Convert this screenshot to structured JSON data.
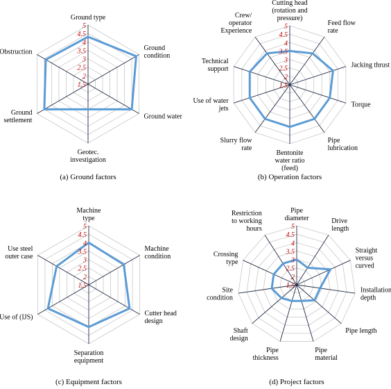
{
  "chart_data": [
    {
      "type": "radar",
      "title": "(a)  Ground factors",
      "categories": [
        "Ground type",
        "Ground\ncondition",
        "Ground water",
        "Geotec.\ninvestigation",
        "Ground\nsettlement",
        "Obstruction"
      ],
      "values": [
        4.3,
        4.8,
        4.5,
        3.0,
        4.5,
        4.4
      ],
      "color": "#5b9bd5",
      "rlim": [
        1.5,
        5
      ],
      "rticks": [
        1.5,
        2,
        2.5,
        3,
        3.5,
        4,
        4.5,
        5
      ],
      "grid": true
    },
    {
      "type": "radar",
      "title": "(b)  Operation factors",
      "categories": [
        "Cutting head\n(rotation and\npressure)",
        "Feed flow\nrate",
        "Jacking thrust",
        "Torque",
        "Pipe\nlubrication",
        "Bentonite\nwater ratio\n(feed)",
        "Slurry flow\nrate",
        "Use of water\njets",
        "Technical\nsupport",
        "Crew/\noperator\nExperience"
      ],
      "values": [
        3.5,
        3.8,
        4.2,
        4.0,
        4.0,
        4.0,
        4.0,
        4.0,
        4.0,
        3.8
      ],
      "color": "#5b9bd5",
      "rlim": [
        1.5,
        5
      ],
      "rticks": [
        1.5,
        2,
        2.5,
        3,
        3.5,
        4,
        4.5,
        5
      ],
      "grid": true
    },
    {
      "type": "radar",
      "title": "(c)  Equipment factors",
      "categories": [
        "Machine\ntype",
        "Machine\ncondition",
        "Cutter head\ndesign",
        "Separation\nequipment",
        "Use of (IJS)",
        "Use steel\nouter case"
      ],
      "values": [
        4.0,
        3.9,
        4.3,
        4.0,
        4.3,
        3.7
      ],
      "color": "#5b9bd5",
      "rlim": [
        1.5,
        5
      ],
      "rticks": [
        1.5,
        2,
        2.5,
        3,
        3.5,
        4,
        4.5,
        5
      ],
      "grid": true
    },
    {
      "type": "radar",
      "title": "(d)  Project  factors",
      "categories": [
        "Pipe\ndiameter",
        "Drive\nlength",
        "Straight\nversus\ncurved",
        "Installation\ndepth",
        "Pipe length",
        "Pipe\nmaterial",
        "Pipe\nthickness",
        "Shaft\ndesign",
        "Site\ncondition",
        "Crossing\ntype",
        "Restriction\nto working\nhours"
      ],
      "values": [
        3.0,
        2.7,
        3.7,
        2.9,
        2.9,
        2.5,
        2.5,
        2.7,
        3.0,
        3.0,
        3.0
      ],
      "color": "#5b9bd5",
      "rlim": [
        1.5,
        5
      ],
      "rticks": [
        1.5,
        2,
        2.5,
        3,
        3.5,
        4,
        4.5,
        5
      ],
      "grid": true
    }
  ]
}
